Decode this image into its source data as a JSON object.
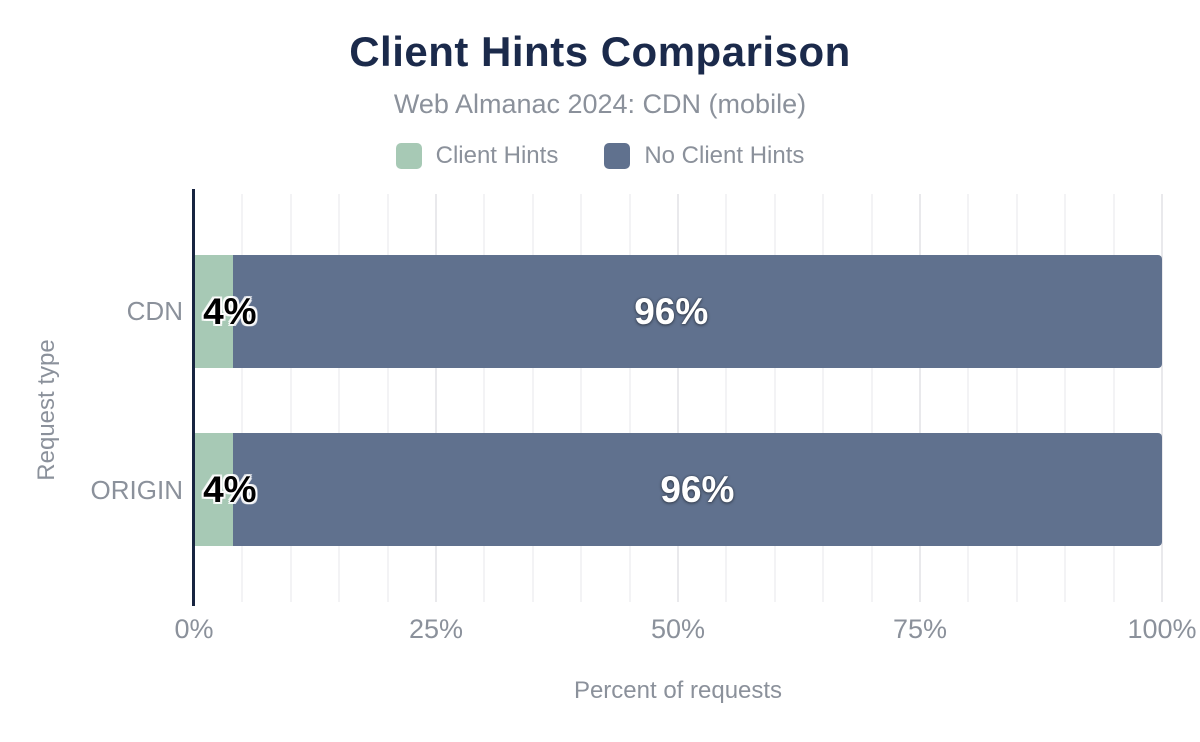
{
  "header": {
    "title": "Client Hints Comparison",
    "subtitle": "Web Almanac 2024: CDN (mobile)"
  },
  "chart_data": {
    "type": "bar",
    "orientation": "horizontal",
    "stacked": true,
    "title": "Client Hints Comparison",
    "subtitle": "Web Almanac 2024: CDN (mobile)",
    "categories": [
      "CDN",
      "ORIGIN"
    ],
    "series": [
      {
        "name": "Client Hints",
        "color": "#a7c9b5",
        "values": [
          4,
          4
        ],
        "data_labels": [
          "4%",
          "4%"
        ],
        "label_style": "dark",
        "label_x_pct": [
          3.7,
          3.7
        ]
      },
      {
        "name": "No Client Hints",
        "color": "#60718e",
        "values": [
          96,
          96
        ],
        "data_labels": [
          "96%",
          "96%"
        ],
        "label_style": "light",
        "label_x_pct": [
          49.3,
          52.0
        ]
      }
    ],
    "xlabel": "Percent of requests",
    "ylabel": "Request type",
    "xlim": [
      0,
      100
    ],
    "x_ticks": [
      {
        "label": "0%",
        "pct": 0
      },
      {
        "label": "25%",
        "pct": 25
      },
      {
        "label": "50%",
        "pct": 50
      },
      {
        "label": "75%",
        "pct": 75
      },
      {
        "label": "100%",
        "pct": 100
      }
    ],
    "grid": true,
    "grid_step_pct": 5,
    "major_grid_step_pct": 25,
    "legend_position": "top"
  },
  "colors": {
    "title": "#1b2a4b",
    "muted_text": "#8b919b",
    "axis_line": "#172440",
    "series_client_hints": "#a7c9b5",
    "series_no_client_hints": "#60718e",
    "background": "#ffffff"
  }
}
